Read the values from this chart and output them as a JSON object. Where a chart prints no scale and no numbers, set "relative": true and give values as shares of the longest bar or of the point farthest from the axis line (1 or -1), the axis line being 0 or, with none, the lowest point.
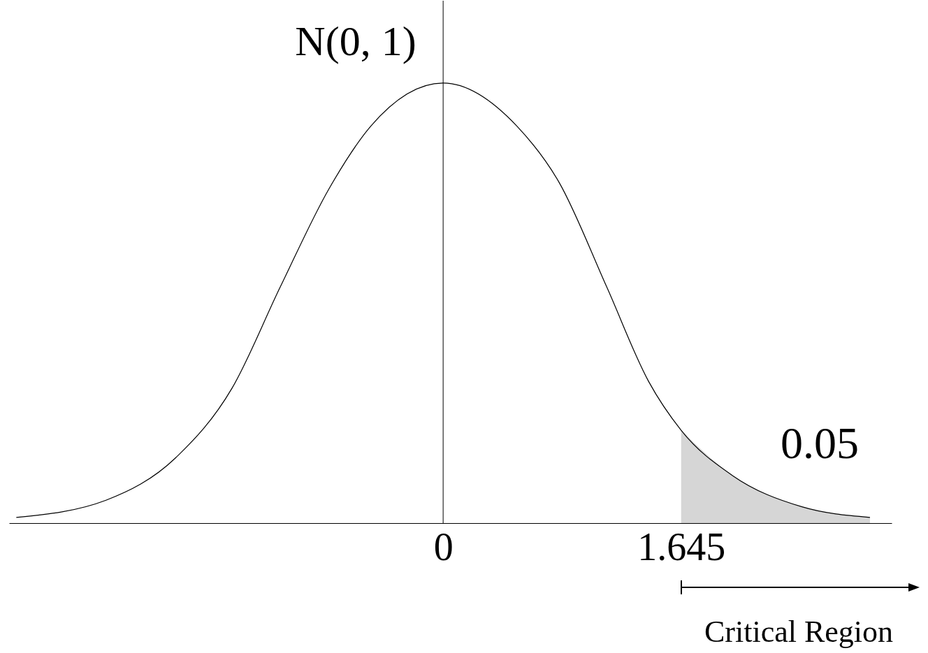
{
  "chart_data": {
    "type": "line",
    "relative": true,
    "ylabel": "N(0, 1)",
    "xlim": [
      -3,
      3.1
    ],
    "xticks": [
      0,
      1.645
    ],
    "grid": false,
    "series": [
      {
        "type": "line",
        "color": "#000000",
        "x": [
          -2.95,
          -2.33,
          -1.85,
          -1.46,
          -1.125,
          -0.79,
          -0.5,
          0,
          0.51,
          0.8,
          1.13,
          1.42,
          1.645,
          2.0,
          2.48,
          2.95
        ],
        "values": [
          0.013,
          0.052,
          0.148,
          0.306,
          0.537,
          0.759,
          0.902,
          1,
          0.902,
          0.775,
          0.537,
          0.322,
          0.211,
          0.108,
          0.037,
          0.013
        ]
      },
      {
        "type": "area",
        "color": "#bbbbbb",
        "x": [
          1.645,
          2.0,
          2.48,
          2.95
        ],
        "values": [
          0.211,
          0.108,
          0.037,
          0.013
        ]
      }
    ],
    "ref_lines": [
      {
        "axis": "x",
        "value": 0
      }
    ],
    "annotations": [
      "0.05",
      "Critical Region"
    ]
  }
}
